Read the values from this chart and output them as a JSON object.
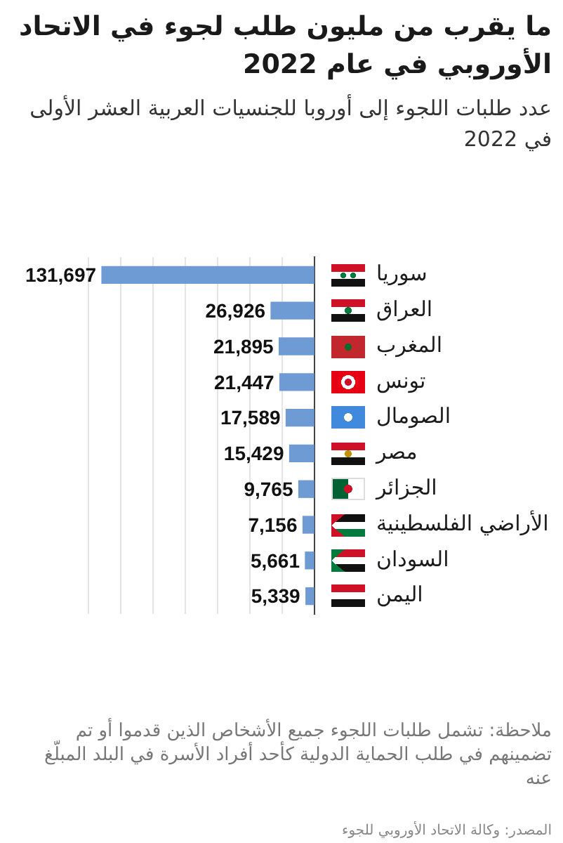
{
  "chart_data": {
    "type": "bar",
    "orientation": "horizontal",
    "title": "ما يقرب من مليون طلب لجوء في الاتحاد الأوروبي في عام 2022",
    "subtitle": "عدد طلبات اللجوء إلى أوروبا للجنسيات العربية العشر الأولى في 2022",
    "categories": [
      "سوريا",
      "العراق",
      "المغرب",
      "تونس",
      "الصومال",
      "مصر",
      "الجزائر",
      "الأراضي الفلسطينية",
      "السودان",
      "اليمن"
    ],
    "values": [
      131697,
      26926,
      21895,
      21447,
      17589,
      15429,
      9765,
      7156,
      5661,
      5339
    ],
    "value_labels": [
      "131,697",
      "26,926",
      "21,895",
      "21,447",
      "17,589",
      "15,429",
      "9,765",
      "7,156",
      "5,661",
      "5,339"
    ],
    "color": "#6e9bd4",
    "xlim": [
      140000,
      0
    ],
    "xticks": [
      {
        "value": 0,
        "label": null
      },
      {
        "value": 20000,
        "label": null
      },
      {
        "value": 40000,
        "label": null
      },
      {
        "value": 60000,
        "label": null
      },
      {
        "value": 80000,
        "label": null
      },
      {
        "value": 100000,
        "label": null
      },
      {
        "value": 120000,
        "label": null
      },
      {
        "value": 140000,
        "label": null
      }
    ],
    "grid": "x",
    "tick_labels": "y",
    "annotations": [
      "ملاحظة: تشمل طلبات اللجوء جميع الأشخاص الذين قدموا أو تم تضمينهم في طلب الحماية الدولية كأحد أفراد الأسرة في البلد المبلّغ عنه",
      "المصدر: وكالة الاتحاد الأوروبي للجوء"
    ]
  }
}
